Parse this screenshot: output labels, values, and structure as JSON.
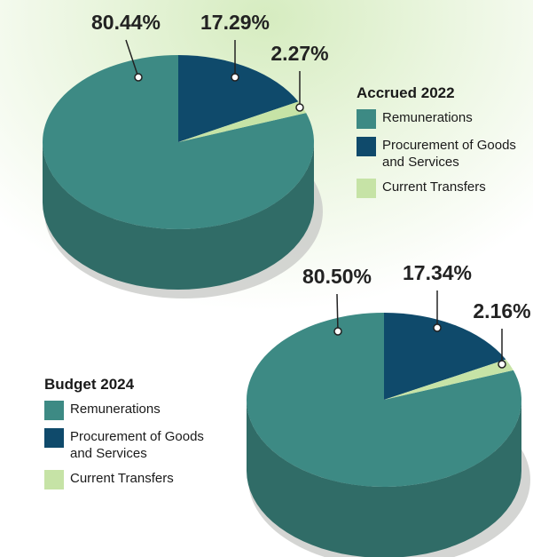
{
  "chart_data": [
    {
      "type": "pie",
      "title": "Accrued 2022",
      "categories": [
        "Remunerations",
        "Procurement of Goods and Services",
        "Current Transfers"
      ],
      "values": [
        80.44,
        17.29,
        2.27
      ],
      "value_labels": [
        "80.44%",
        "17.29%",
        "2.27%"
      ],
      "colors": [
        "#3d8a84",
        "#0f4a6b",
        "#c6e3a6"
      ]
    },
    {
      "type": "pie",
      "title": "Budget 2024",
      "categories": [
        "Remunerations",
        "Procurement of Goods and Services",
        "Current Transfers"
      ],
      "values": [
        80.5,
        17.34,
        2.16
      ],
      "value_labels": [
        "80.50%",
        "17.34%",
        "2.16%"
      ],
      "colors": [
        "#3d8a84",
        "#0f4a6b",
        "#c6e3a6"
      ]
    }
  ]
}
